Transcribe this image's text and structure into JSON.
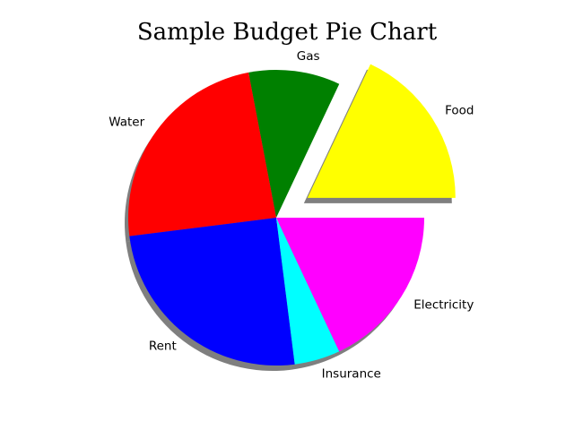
{
  "chart_data": {
    "type": "pie",
    "title": "Sample Budget Pie Chart",
    "labels": [
      "Food",
      "Gas",
      "Water",
      "Rent",
      "Insurance",
      "Electricity"
    ],
    "values": [
      18,
      10,
      24,
      25,
      5,
      18
    ],
    "colors": [
      "#ffff00",
      "#008000",
      "#ff0000",
      "#0000ff",
      "#00ffff",
      "#ff00ff"
    ],
    "explode": [
      0.25,
      0,
      0,
      0,
      0,
      0
    ],
    "start_angle_deg": 0,
    "counterclockwise": true,
    "shadow": true,
    "legend": false
  }
}
